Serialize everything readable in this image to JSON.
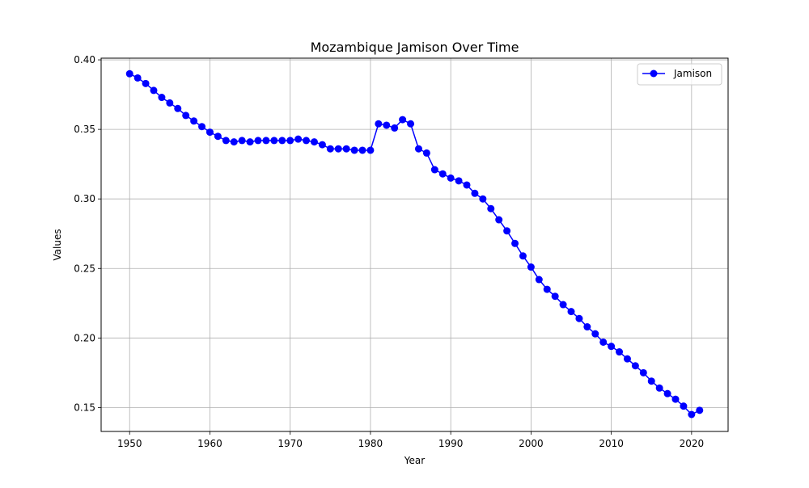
{
  "chart_data": {
    "type": "line",
    "title": "Mozambique Jamison Over Time",
    "xlabel": "Year",
    "ylabel": "Values",
    "xlim": [
      1946.45,
      2024.55
    ],
    "ylim": [
      0.1328,
      0.4012
    ],
    "x_ticks": [
      1950,
      1960,
      1970,
      1980,
      1990,
      2000,
      2010,
      2020
    ],
    "y_ticks": [
      0.15,
      0.2,
      0.25,
      0.3,
      0.35,
      0.4
    ],
    "y_tick_labels": [
      "0.15",
      "0.20",
      "0.25",
      "0.30",
      "0.35",
      "0.40"
    ],
    "grid": true,
    "legend_position": "top-right",
    "series": [
      {
        "name": "Jamison",
        "color": "#0000ff",
        "marker": "circle",
        "x": [
          1950,
          1951,
          1952,
          1953,
          1954,
          1955,
          1956,
          1957,
          1958,
          1959,
          1960,
          1961,
          1962,
          1963,
          1964,
          1965,
          1966,
          1967,
          1968,
          1969,
          1970,
          1971,
          1972,
          1973,
          1974,
          1975,
          1976,
          1977,
          1978,
          1979,
          1980,
          1981,
          1982,
          1983,
          1984,
          1985,
          1986,
          1987,
          1988,
          1989,
          1990,
          1991,
          1992,
          1993,
          1994,
          1995,
          1996,
          1997,
          1998,
          1999,
          2000,
          2001,
          2002,
          2003,
          2004,
          2005,
          2006,
          2007,
          2008,
          2009,
          2010,
          2011,
          2012,
          2013,
          2014,
          2015,
          2016,
          2017,
          2018,
          2019,
          2020,
          2021
        ],
        "values": [
          0.39,
          0.387,
          0.383,
          0.378,
          0.373,
          0.369,
          0.365,
          0.36,
          0.356,
          0.352,
          0.348,
          0.345,
          0.342,
          0.341,
          0.342,
          0.341,
          0.342,
          0.342,
          0.342,
          0.342,
          0.342,
          0.343,
          0.342,
          0.341,
          0.339,
          0.336,
          0.336,
          0.336,
          0.335,
          0.335,
          0.335,
          0.354,
          0.353,
          0.351,
          0.357,
          0.354,
          0.336,
          0.333,
          0.321,
          0.318,
          0.315,
          0.313,
          0.31,
          0.304,
          0.3,
          0.293,
          0.285,
          0.277,
          0.268,
          0.259,
          0.251,
          0.242,
          0.235,
          0.23,
          0.224,
          0.219,
          0.214,
          0.208,
          0.203,
          0.197,
          0.194,
          0.19,
          0.185,
          0.18,
          0.175,
          0.169,
          0.164,
          0.16,
          0.156,
          0.151,
          0.145,
          0.148
        ]
      }
    ]
  }
}
